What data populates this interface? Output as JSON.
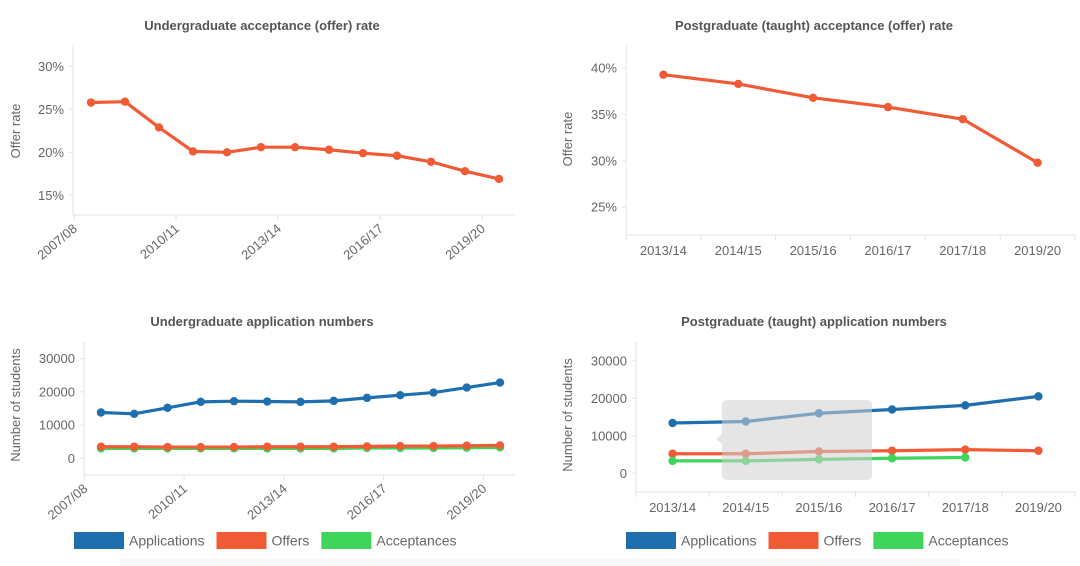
{
  "legend": {
    "items": [
      {
        "label": "Applications",
        "color": "#1f6fae"
      },
      {
        "label": "Offers",
        "color": "#f05a35"
      },
      {
        "label": "Acceptances",
        "color": "#3fd45a"
      }
    ]
  },
  "chart_data": [
    {
      "id": "ug-rate",
      "type": "line",
      "title": "Undergraduate acceptance (offer) rate",
      "xlabel": "",
      "ylabel": "Offer rate",
      "x": [
        "2007/08",
        "2008/09",
        "2009/10",
        "2010/11",
        "2011/12",
        "2012/13",
        "2013/14",
        "2014/15",
        "2015/16",
        "2016/17",
        "2017/18",
        "2018/19",
        "2019/20"
      ],
      "x_tick_labels": [
        "2007/08",
        "2010/11",
        "2013/14",
        "2016/17",
        "2019/20"
      ],
      "y_ticks": [
        15,
        20,
        25,
        30
      ],
      "y_tick_labels": [
        "15%",
        "20%",
        "25%",
        "30%"
      ],
      "ylim": [
        12.7,
        32.5
      ],
      "grid": false,
      "series": [
        {
          "name": "Offer rate",
          "color": "#f05a35",
          "values": [
            25.8,
            25.9,
            22.9,
            20.1,
            20.0,
            20.6,
            20.6,
            20.3,
            19.9,
            19.6,
            18.9,
            17.8,
            16.9
          ]
        }
      ]
    },
    {
      "id": "pg-rate",
      "type": "line",
      "title": "Postgraduate (taught) acceptance (offer) rate",
      "xlabel": "",
      "ylabel": "Offer rate",
      "x": [
        "2013/14",
        "2014/15",
        "2015/16",
        "2016/17",
        "2017/18",
        "2019/20"
      ],
      "x_tick_labels": [
        "2013/14",
        "2014/15",
        "2015/16",
        "2016/17",
        "2017/18",
        "2019/20"
      ],
      "y_ticks": [
        25,
        30,
        35,
        40
      ],
      "y_tick_labels": [
        "25%",
        "30%",
        "35%",
        "40%"
      ],
      "ylim": [
        22.0,
        42.5
      ],
      "grid": false,
      "series": [
        {
          "name": "Offer rate",
          "color": "#f05a35",
          "values": [
            39.3,
            38.3,
            36.8,
            35.8,
            34.5,
            29.8
          ]
        }
      ]
    },
    {
      "id": "ug-numbers",
      "type": "line",
      "title": "Undergraduate application numbers",
      "xlabel": "",
      "ylabel": "Number of students",
      "x": [
        "2007/08",
        "2008/09",
        "2009/10",
        "2010/11",
        "2011/12",
        "2012/13",
        "2013/14",
        "2014/15",
        "2015/16",
        "2016/17",
        "2017/18",
        "2018/19",
        "2019/20"
      ],
      "x_tick_labels": [
        "2007/08",
        "2010/11",
        "2013/14",
        "2016/17",
        "2019/20"
      ],
      "y_ticks": [
        0,
        10000,
        20000,
        30000
      ],
      "y_tick_labels": [
        "0",
        "10000",
        "20000",
        "30000"
      ],
      "ylim": [
        -5000,
        35000
      ],
      "grid": false,
      "legend": "bottom",
      "series": [
        {
          "name": "Applications",
          "color": "#1f6fae",
          "values": [
            13800,
            13400,
            15200,
            17000,
            17200,
            17100,
            17000,
            17300,
            18200,
            19000,
            19800,
            21300,
            22800
          ]
        },
        {
          "name": "Acceptances",
          "color": "#3fd45a",
          "values": [
            3000,
            3000,
            3000,
            3000,
            3000,
            3000,
            3000,
            3000,
            3100,
            3100,
            3100,
            3200,
            3300
          ]
        },
        {
          "name": "Offers",
          "color": "#f05a35",
          "values": [
            3500,
            3500,
            3400,
            3400,
            3400,
            3500,
            3500,
            3500,
            3600,
            3700,
            3700,
            3800,
            3900
          ]
        }
      ]
    },
    {
      "id": "pg-numbers",
      "type": "line",
      "title": "Postgraduate (taught) application numbers",
      "xlabel": "",
      "ylabel": "Number of students",
      "x": [
        "2013/14",
        "2014/15",
        "2015/16",
        "2016/17",
        "2017/18",
        "2019/20"
      ],
      "x_tick_labels": [
        "2013/14",
        "2014/15",
        "2015/16",
        "2016/17",
        "2017/18",
        "2019/20"
      ],
      "y_ticks": [
        0,
        10000,
        20000,
        30000
      ],
      "y_tick_labels": [
        "0",
        "10000",
        "20000",
        "30000"
      ],
      "ylim": [
        -5000,
        35000
      ],
      "grid": false,
      "legend": "bottom",
      "series": [
        {
          "name": "Applications",
          "color": "#1f6fae",
          "values": [
            13400,
            13800,
            16000,
            17000,
            18100,
            20500
          ]
        },
        {
          "name": "Offers",
          "color": "#f05a35",
          "values": [
            5200,
            5200,
            5800,
            6000,
            6300,
            6000
          ]
        },
        {
          "name": "Acceptances",
          "color": "#3fd45a",
          "values": [
            3300,
            3300,
            3700,
            4000,
            4200,
            null
          ]
        }
      ]
    }
  ]
}
